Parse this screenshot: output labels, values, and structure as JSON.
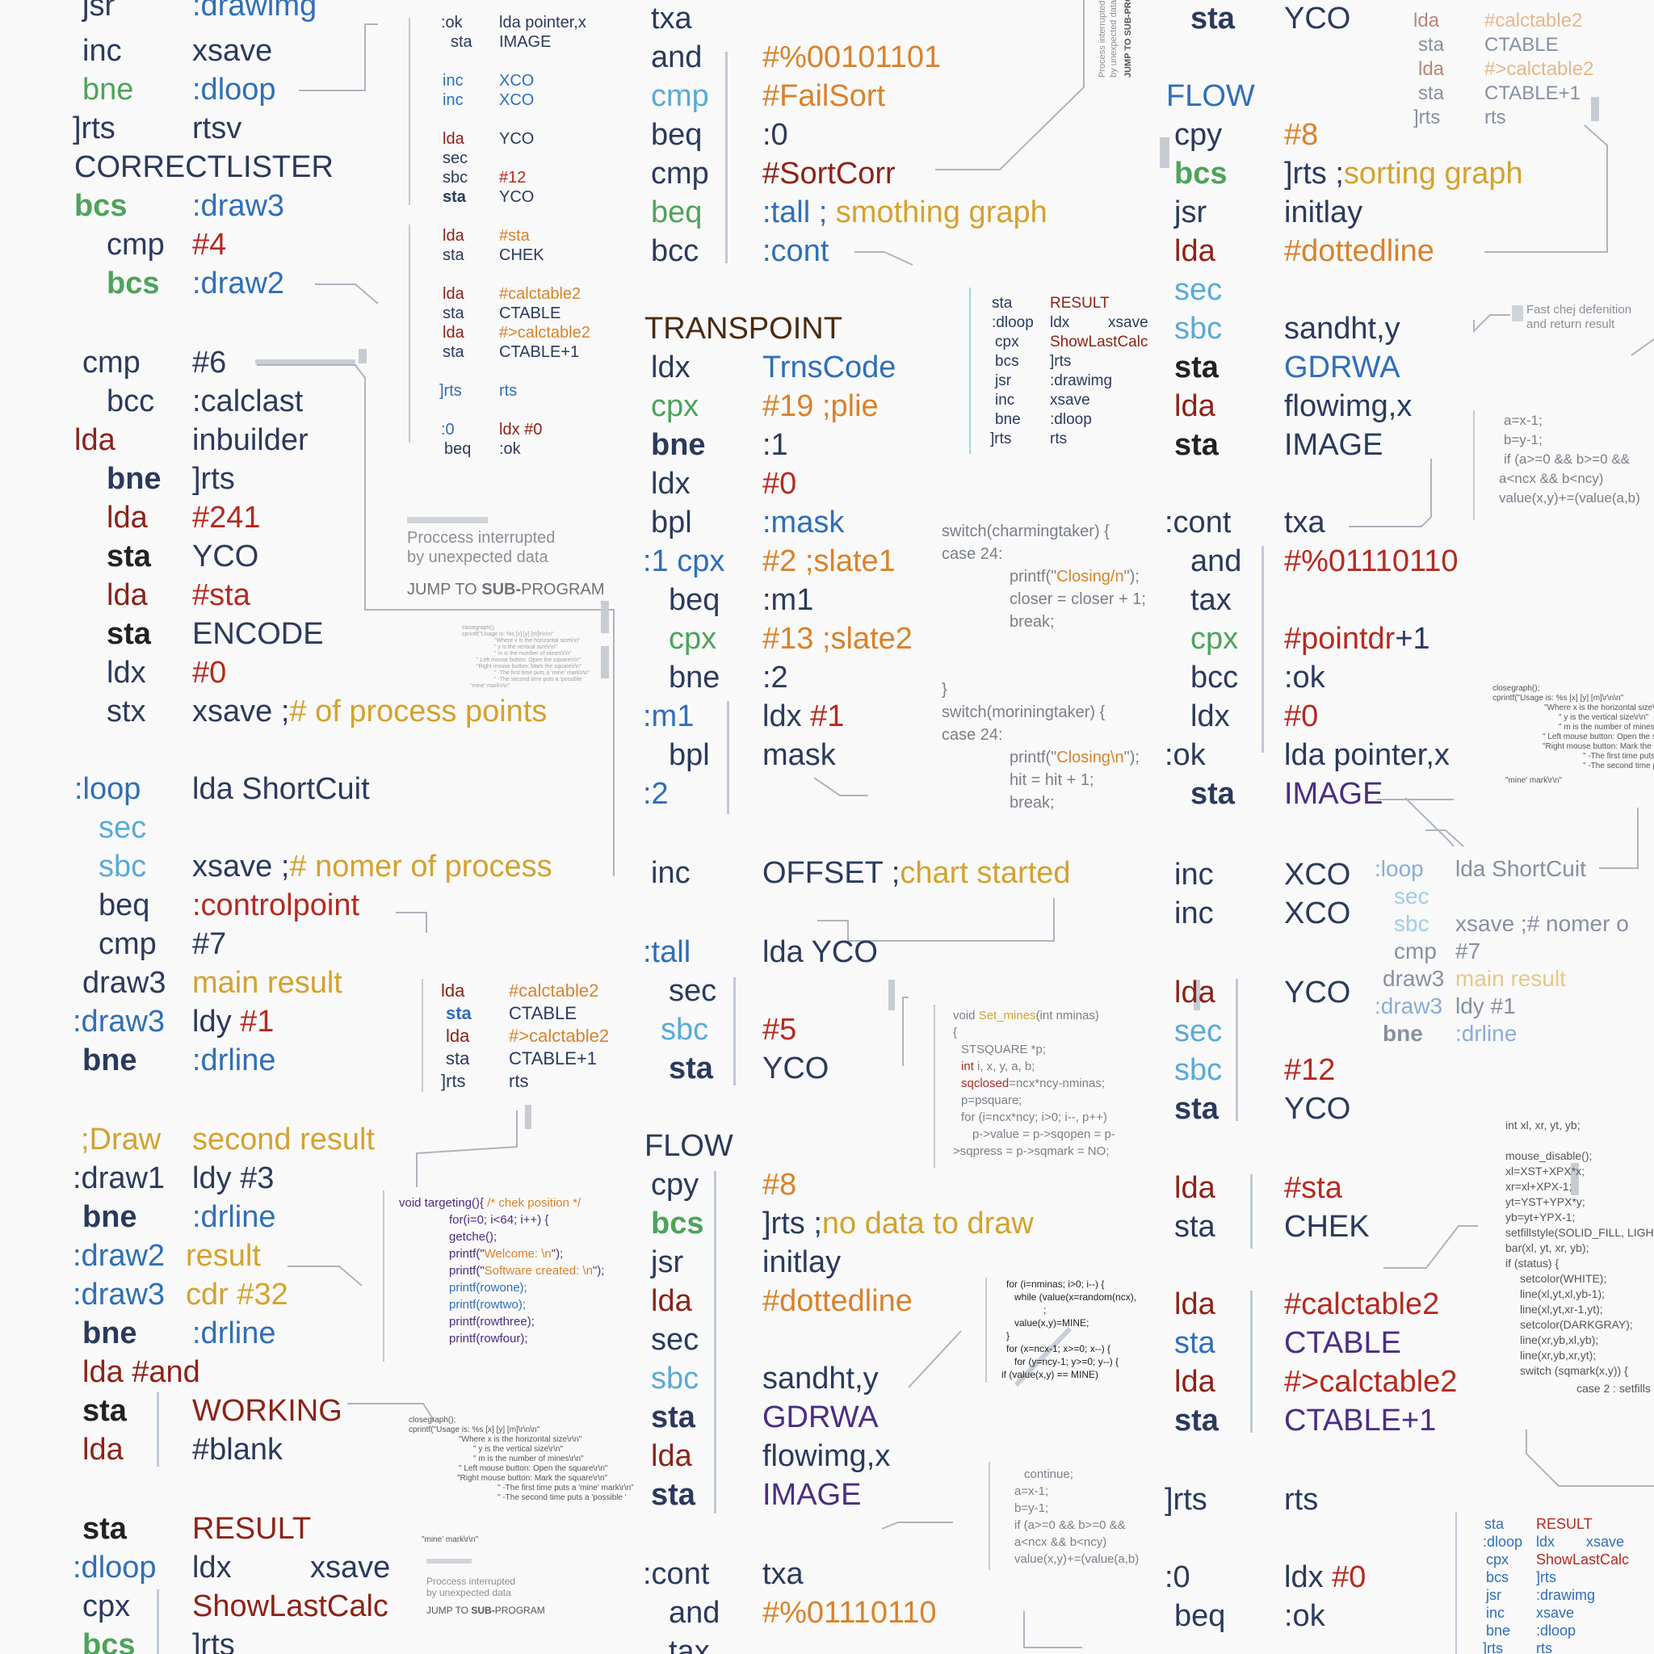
{
  "colors": {
    "navy": "#2b3a5c",
    "blue": "#2f6fb8",
    "lightblue": "#5aaad6",
    "green": "#4ea35a",
    "red": "#b52a20",
    "darkred": "#8c2318",
    "orange": "#d9822b",
    "gold": "#d4a22e",
    "purple": "#4b2d83",
    "brown": "#4a2a0f",
    "grey": "#7a7f88",
    "black": "#222222"
  },
  "left": {
    "block1": [
      {
        "k": "jsr",
        "v": ":drawimg"
      },
      {
        "k": "inc",
        "v": "xsave"
      },
      {
        "k": "bne",
        "v": ":dloop"
      },
      {
        "k": "]rts",
        "v": "rtsv"
      },
      {
        "k": "CORRECTLISTER",
        "v": ""
      },
      {
        "k": "bcs",
        "v": ":draw3"
      },
      {
        "k": "cmp",
        "v": "#4"
      },
      {
        "k": "bcs",
        "v": ":draw2"
      }
    ],
    "block2": [
      {
        "k": "cmp",
        "v": "#6"
      },
      {
        "k": "bcc",
        "v": ":calclast"
      },
      {
        "k": "lda",
        "v": "inbuilder"
      },
      {
        "k": "bne",
        "v": "]rts"
      },
      {
        "k": "lda",
        "v": "#241"
      },
      {
        "k": "sta",
        "v": "YCO"
      },
      {
        "k": "lda",
        "v": "#sta"
      },
      {
        "k": "sta",
        "v": "ENCODE"
      },
      {
        "k": "ldx",
        "v": "#0"
      },
      {
        "k": "stx",
        "v": "xsave ;",
        "c": "# of process points"
      }
    ],
    "block3": [
      {
        "k": ":loop",
        "v": "lda ShortCuit"
      },
      {
        "k": "sec",
        "v": ""
      },
      {
        "k": "sbc",
        "v": "xsave ;",
        "c": "# nomer of process"
      },
      {
        "k": "beq",
        "v": ":controlpoint"
      },
      {
        "k": "cmp",
        "v": "#7"
      },
      {
        "k": "draw3",
        "v": "main result"
      },
      {
        "k": ":draw3",
        "v": "ldy ",
        "c": "#1"
      },
      {
        "k": "bne",
        "v": ":drline"
      }
    ],
    "block4": [
      {
        "k": ";Draw",
        "v": "second result"
      },
      {
        "k": ":draw1",
        "v": "ldy #3"
      },
      {
        "k": "bne",
        "v": ":drline"
      },
      {
        "k": ":draw2",
        "v": "result"
      },
      {
        "k": ":draw3",
        "v": "cdr #32"
      },
      {
        "k": "bne",
        "v": ":drline"
      },
      {
        "k": "lda #and",
        "v": ""
      },
      {
        "k": "sta",
        "v": "WORKING"
      },
      {
        "k": "lda",
        "v": "#blank"
      }
    ],
    "block5": [
      {
        "k": "sta",
        "v": "RESULT"
      },
      {
        "k": ":dloop",
        "v": "ldx",
        "v2": "xsave"
      },
      {
        "k": "cpx",
        "v": "ShowLastCalc"
      },
      {
        "k": "bcs",
        "v": "]rts"
      }
    ]
  },
  "mini1": [
    {
      "k": ":ok",
      "v": "lda pointer,x"
    },
    {
      "k": "sta",
      "v": "IMAGE"
    },
    {
      "k": "inc",
      "v": "XCO"
    },
    {
      "k": "inc",
      "v": "XCO"
    },
    {
      "k": "lda",
      "v": "YCO"
    },
    {
      "k": "sec",
      "v": ""
    },
    {
      "k": "sbc",
      "v": "#12"
    },
    {
      "k": "sta",
      "v": "YCO"
    },
    {
      "k": "lda",
      "v": "#sta"
    },
    {
      "k": "sta",
      "v": "CHEK"
    },
    {
      "k": "lda",
      "v": "#calctable2"
    },
    {
      "k": "sta",
      "v": "CTABLE"
    },
    {
      "k": "lda",
      "v": "#>calctable2"
    },
    {
      "k": "sta",
      "v": "CTABLE+1"
    },
    {
      "k": "]rts",
      "v": "rts"
    },
    {
      "k": ":0",
      "v": "ldx #0"
    },
    {
      "k": "beq",
      "v": ":ok"
    }
  ],
  "notice": {
    "line1": "Proccess interrupted",
    "line2": "by unexpected data",
    "jump_a": "JUMP TO ",
    "jump_b": "SUB-",
    "jump_c": "PROGRAM"
  },
  "notice_side": {
    "line1": "Process interrupted",
    "line2": "by unexpected data",
    "jump": "JUMP TO SUB-PROGRAM"
  },
  "mini2": [
    {
      "k": "lda",
      "v": "#calctable2"
    },
    {
      "k": "sta",
      "v": "CTABLE"
    },
    {
      "k": "lda",
      "v": "#>calctable2"
    },
    {
      "k": "sta",
      "v": "CTABLE+1"
    },
    {
      "k": "]rts",
      "v": "rts"
    }
  ],
  "usage": {
    "l1": "closegraph();",
    "l2": "cprintf(\"Usage is: %s [x] [y] [m]\\r\\n\\n\"",
    "l3": "\"Where x is the horizontal size\\r\\n\"",
    "l4": "\" y is the vertical size\\r\\n\"",
    "l5": "\" m is the number of mines\\r\\n\"",
    "l6": "\" Left mouse button: Open the square\\r\\n\"",
    "l7": "\"Right mouse button: Mark the square\\r\\n\"",
    "l8": "\" -The first time puts a 'mine' mark\\r\\n\"",
    "l9": "\" -The second time puts a 'possible '",
    "l10": "\"mine' mark\\r\\n\""
  },
  "targeting": {
    "l1a": "void targeting(){ ",
    "l1b": "/* chek position */",
    "l2": "for(i=0; i<64; i++) {",
    "l3": "getche();",
    "l4a": "printf(\"",
    "l4b": "Welcome: \\n",
    "l4c": "\");",
    "l5a": "printf(\"",
    "l5b": "Software created: \\n",
    "l5c": "\");",
    "l6": "printf(rowone);",
    "l7": "printf(rowtwo);",
    "l8": "printf(rowthree);",
    "l9": "printf(rowfour);"
  },
  "center": {
    "block1": [
      {
        "k": "txa",
        "v": ""
      },
      {
        "k": "and",
        "v": "#%00101101"
      },
      {
        "k": "cmp",
        "v": "#FailSort"
      },
      {
        "k": "beq",
        "v": ":0"
      },
      {
        "k": "cmp",
        "v": "#SortCorr"
      },
      {
        "k": "beq",
        "v": ":tall ;",
        "c": " smothing graph"
      },
      {
        "k": "bcc",
        "v": ":cont"
      }
    ],
    "transpoint": "TRANSPOINT",
    "block2": [
      {
        "k": "ldx",
        "v": "TrnsCode"
      },
      {
        "k": "cpx",
        "v": "#19 ;plie"
      },
      {
        "k": "bne",
        "v": ":1"
      },
      {
        "k": "ldx",
        "v": "#0"
      },
      {
        "k": "bpl",
        "v": ":mask"
      },
      {
        "k": ":1 cpx",
        "v": "#2 ;slate1"
      },
      {
        "k": "beq",
        "v": ":m1"
      },
      {
        "k": "cpx",
        "v": "#13 ;slate2"
      },
      {
        "k": "bne",
        "v": ":2"
      },
      {
        "k": ":m1",
        "v": "ldx ",
        "c": "#1"
      },
      {
        "k": "bpl",
        "v": "mask"
      },
      {
        "k": ":2",
        "v": ""
      }
    ],
    "inc_line": {
      "k": "inc",
      "v": "OFFSET ;",
      "c": "chart started"
    },
    "block3": [
      {
        "k": ":tall",
        "v": "lda YCO"
      },
      {
        "k": "sec",
        "v": ""
      },
      {
        "k": "sbc",
        "v": "#5"
      },
      {
        "k": "sta",
        "v": "YCO"
      }
    ],
    "flow": "FLOW",
    "block4": [
      {
        "k": "cpy",
        "v": "#8"
      },
      {
        "k": "bcs",
        "v": "]rts ;",
        "c": "no data to draw"
      },
      {
        "k": "jsr",
        "v": "initlay"
      },
      {
        "k": "lda",
        "v": "#dottedline"
      },
      {
        "k": "sec",
        "v": ""
      },
      {
        "k": "sbc",
        "v": "sandht,y"
      },
      {
        "k": "sta",
        "v": "GDRWA"
      },
      {
        "k": "lda",
        "v": "flowimg,x"
      },
      {
        "k": "sta",
        "v": "IMAGE"
      }
    ],
    "block5": [
      {
        "k": ":cont",
        "v": "txa"
      },
      {
        "k": "and",
        "v": "#%01110110"
      },
      {
        "k": "tax",
        "v": ""
      }
    ]
  },
  "mini3": [
    {
      "k": "sta",
      "v": "RESULT"
    },
    {
      "k": ":dloop",
      "v": "ldx",
      "v2": "xsave"
    },
    {
      "k": "cpx",
      "v": "ShowLastCalc"
    },
    {
      "k": "bcs",
      "v": "]rts"
    },
    {
      "k": "jsr",
      "v": ":drawimg"
    },
    {
      "k": "inc",
      "v": "xsave"
    },
    {
      "k": "bne",
      "v": ":dloop"
    },
    {
      "k": "]rts",
      "v": "rts"
    }
  ],
  "switch1": {
    "l1": "switch(charmingtaker) {",
    "l2": "case 24:",
    "l3a": "printf(\"",
    "l3b": "Closing/n",
    "l3c": "\");",
    "l4": "closer = closer + 1;",
    "l5": "break;",
    "l6": "}"
  },
  "switch2": {
    "l1": "switch(moriningtaker) {",
    "l2": "case 24:",
    "l3a": "printf(\"",
    "l3b": "Closing\\n",
    "l3c": "\");",
    "l4": "hit = hit + 1;",
    "l5": "break;"
  },
  "setmines": {
    "l1a": "void ",
    "l1b": "Set_mines",
    "l1c": "(int nminas)",
    "l2": "{",
    "l3": "STSQUARE *p;",
    "l4a": "int",
    "l4b": " i, x, y, a, b;",
    "l5a": "sqclosed",
    "l5b": "=ncx*ncy-nminas;",
    "l6": "p=psquare;",
    "l7": "for (i=ncx*ncy; i>0; i--, p++)",
    "l8": "p->value = p->sqopen = p-",
    "l9": ">sqpress = p->sqmark = NO;"
  },
  "formines": {
    "l1": "for (i=nminas; i>0; i--) {",
    "l2": "while (value(x=random(ncx),",
    "l3": ";",
    "l4": "value(x,y)=MINE;",
    "l5": "}",
    "l6": "for (x=ncx-1; x>=0; x--) {",
    "l7": "for (y=ncy-1; y>=0; y--) {",
    "l8": "if (value(x,y) == MINE)"
  },
  "cont1": {
    "l1": "continue;",
    "l2": "a=x-1;",
    "l3": "b=y-1;",
    "l4": "if (a>=0 && b>=0 &&",
    "l5": "a<ncx && b<ncy)",
    "l6": "value(x,y)+=(value(a,b)"
  },
  "right": {
    "top": {
      "k": "sta",
      "v": "YCO"
    },
    "flow": "FLOW",
    "block1": [
      {
        "k": "cpy",
        "v": "#8"
      },
      {
        "k": "bcs",
        "v": "]rts ;",
        "c": "sorting graph"
      },
      {
        "k": "jsr",
        "v": "initlay"
      },
      {
        "k": "lda",
        "v": "#dottedline"
      },
      {
        "k": "sec",
        "v": ""
      },
      {
        "k": "sbc",
        "v": "sandht,y"
      },
      {
        "k": "sta",
        "v": "GDRWA"
      },
      {
        "k": "lda",
        "v": "flowimg,x"
      },
      {
        "k": "sta",
        "v": "IMAGE"
      }
    ],
    "block2": [
      {
        "k": ":cont",
        "v": "txa"
      },
      {
        "k": "and",
        "v": "#%01110110"
      },
      {
        "k": "tax",
        "v": ""
      },
      {
        "k": "cpx",
        "v": "#pointdr",
        "v2": "+1"
      },
      {
        "k": "bcc",
        "v": ":ok"
      },
      {
        "k": "ldx",
        "v": "#0"
      },
      {
        "k": ":ok",
        "v": "lda pointer,x"
      },
      {
        "k": "sta",
        "v": "IMAGE"
      }
    ],
    "block3": [
      {
        "k": "inc",
        "v": "XCO"
      },
      {
        "k": "inc",
        "v": "XCO"
      }
    ],
    "block4": [
      {
        "k": "lda",
        "v": "YCO"
      },
      {
        "k": "sec",
        "v": ""
      },
      {
        "k": "sbc",
        "v": "#12"
      },
      {
        "k": "sta",
        "v": "YCO"
      }
    ],
    "block5": [
      {
        "k": "lda",
        "v": "#sta"
      },
      {
        "k": "sta",
        "v": "CHEK"
      }
    ],
    "block6": [
      {
        "k": "lda",
        "v": "#calctable2"
      },
      {
        "k": "sta",
        "v": "CTABLE"
      },
      {
        "k": "lda",
        "v": "#>calctable2"
      },
      {
        "k": "sta",
        "v": "CTABLE+1"
      }
    ],
    "block7": [
      {
        "k": "]rts",
        "v": "rts"
      }
    ],
    "block8": [
      {
        "k": ":0",
        "v": "ldx ",
        "c": "#0"
      },
      {
        "k": "beq",
        "v": ":ok"
      }
    ]
  },
  "mini4": [
    {
      "k": "lda",
      "v": "#calctable2"
    },
    {
      "k": "sta",
      "v": "CTABLE"
    },
    {
      "k": "lda",
      "v": "#>calctable2"
    },
    {
      "k": "sta",
      "v": "CTABLE+1"
    },
    {
      "k": "]rts",
      "v": "rts"
    }
  ],
  "chej": {
    "l1": "Fast chej defenition",
    "l2": "and return result"
  },
  "cont2": {
    "l1": "a=x-1;",
    "l2": "b=y-1;",
    "l3": "if (a>=0 && b>=0 &&",
    "l4": "a<ncx && b<ncy)",
    "l5": "value(x,y)+=(value(a,b)"
  },
  "mini5": [
    {
      "k": ":loop",
      "v": "lda ShortCuit"
    },
    {
      "k": "sec",
      "v": ""
    },
    {
      "k": "sbc",
      "v": "xsave ;# nomer o"
    },
    {
      "k": "cmp",
      "v": "#7"
    },
    {
      "k": "draw3",
      "v": "main result"
    },
    {
      "k": ":draw3",
      "v": "ldy #1"
    },
    {
      "k": "bne",
      "v": ":drline"
    }
  ],
  "mouse": {
    "l1": "int xl, xr, yt, yb;",
    "l2": "mouse_disable();",
    "l3": "xl=XST+XPX*x;",
    "l4": "xr=xl+XPX-1;",
    "l5": "yt=YST+YPX*y;",
    "l6": "yb=yt+YPX-1;",
    "l7": "setfillstyle(SOLID_FILL, LIGH",
    "l8": "bar(xl, yt, xr, yb);",
    "l9": "if (status) {",
    "l10": "setcolor(WHITE);",
    "l11": "line(xl,yt,xl,yb-1);",
    "l12": "line(xl,yt,xr-1,yt);",
    "l13": "setcolor(DARKGRAY);",
    "l14": "line(xr,yb,xl,yb);",
    "l15": "line(xr,yb,xr,yt);",
    "l16": "switch (sqmark(x,y)) {",
    "l17": "case 2 : setfills"
  },
  "mini6": [
    {
      "k": "sta",
      "v": "RESULT"
    },
    {
      "k": ":dloop",
      "v": "ldx",
      "v2": "xsave"
    },
    {
      "k": "cpx",
      "v": "ShowLastCalc"
    },
    {
      "k": "bcs",
      "v": "]rts"
    },
    {
      "k": "jsr",
      "v": ":drawimg"
    },
    {
      "k": "inc",
      "v": "xsave"
    },
    {
      "k": "bne",
      "v": ":dloop"
    },
    {
      "k": "]rts",
      "v": "rts"
    }
  ]
}
